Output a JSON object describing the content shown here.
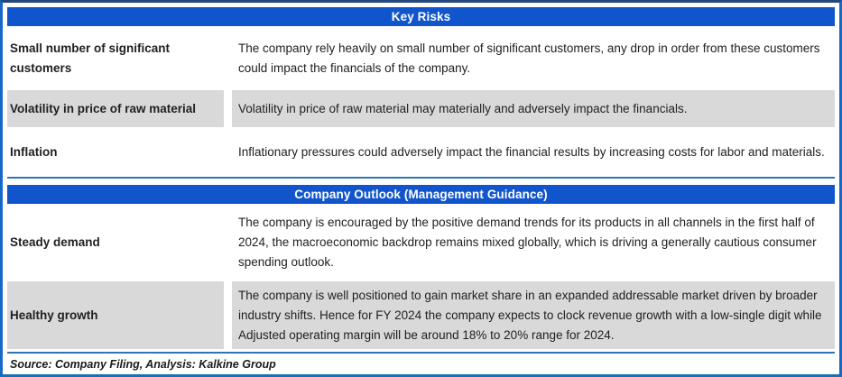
{
  "theme": {
    "banner_blue": "#1155cc",
    "row_gray": "#d9d9d9",
    "divider_blue": "#2e75b6",
    "outer_border_blue": "#1668c8",
    "text_color": "#212121"
  },
  "sections": [
    {
      "title": "Key Risks",
      "rows": [
        {
          "label": "Small number of significant customers",
          "description": "The company rely heavily on small number of significant customers, any drop in order from these customers could impact the financials of the company."
        },
        {
          "label": "Volatility in price of raw material",
          "description": "Volatility in price of raw material may materially and adversely impact the financials."
        },
        {
          "label": "Inflation",
          "description": "Inflationary pressures could adversely impact the financial results by increasing costs for labor and materials."
        }
      ]
    },
    {
      "title": "Company Outlook (Management Guidance)",
      "rows": [
        {
          "label": "Steady demand",
          "description": "The company is encouraged by the positive demand trends for its products in all channels in the first half of 2024, the macroeconomic backdrop remains mixed globally, which is driving a generally cautious consumer spending outlook."
        },
        {
          "label": "Healthy growth",
          "description": "The company is well positioned to gain market share in an expanded addressable market driven by broader industry shifts. Hence for FY 2024 the company expects to clock revenue growth with a low-single digit while Adjusted operating margin will be around 18% to 20% range for 2024."
        }
      ]
    }
  ],
  "footer": {
    "source_note": "Source: Company Filing, Analysis: Kalkine Group"
  }
}
